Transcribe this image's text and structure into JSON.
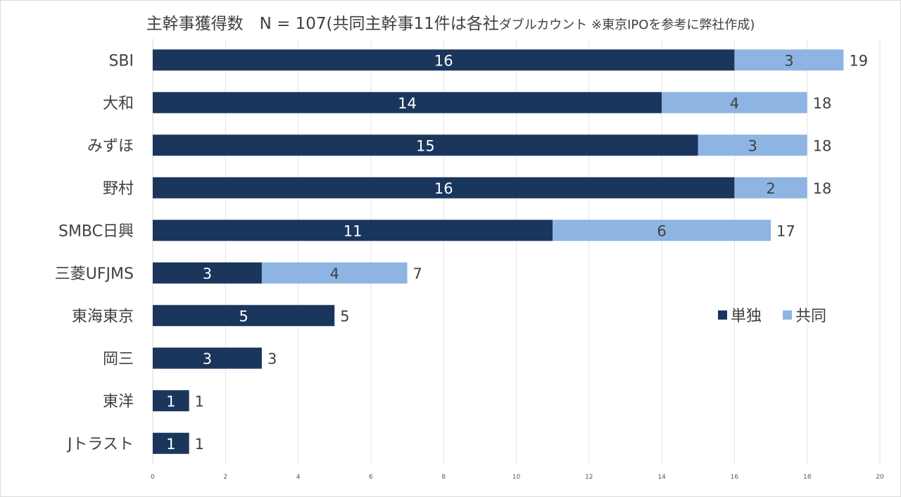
{
  "chart_data": {
    "type": "bar",
    "orientation": "horizontal",
    "stacked": true,
    "title": "主幹事獲得数　N = 107(共同主幹事11件は各社",
    "title_suffix": "ダブルカウント ※東京IPOを参考に弊社作成)",
    "categories": [
      "SBI",
      "大和",
      "みずほ",
      "野村",
      "SMBC日興",
      "三菱UFJMS",
      "東海東京",
      "岡三",
      "東洋",
      "Jトラスト"
    ],
    "series": [
      {
        "name": "単独",
        "color": "#1b365d",
        "values": [
          16,
          14,
          15,
          16,
          11,
          3,
          5,
          3,
          1,
          1
        ]
      },
      {
        "name": "共同",
        "color": "#8eb4e3",
        "values": [
          3,
          4,
          3,
          2,
          6,
          4,
          0,
          0,
          0,
          0
        ]
      }
    ],
    "totals": [
      19,
      18,
      18,
      18,
      17,
      7,
      5,
      3,
      1,
      1
    ],
    "xlim": [
      0,
      20
    ],
    "xticks": [
      0,
      2,
      4,
      6,
      8,
      10,
      12,
      14,
      16,
      18,
      20
    ],
    "grid": true,
    "legend": "center-right"
  }
}
